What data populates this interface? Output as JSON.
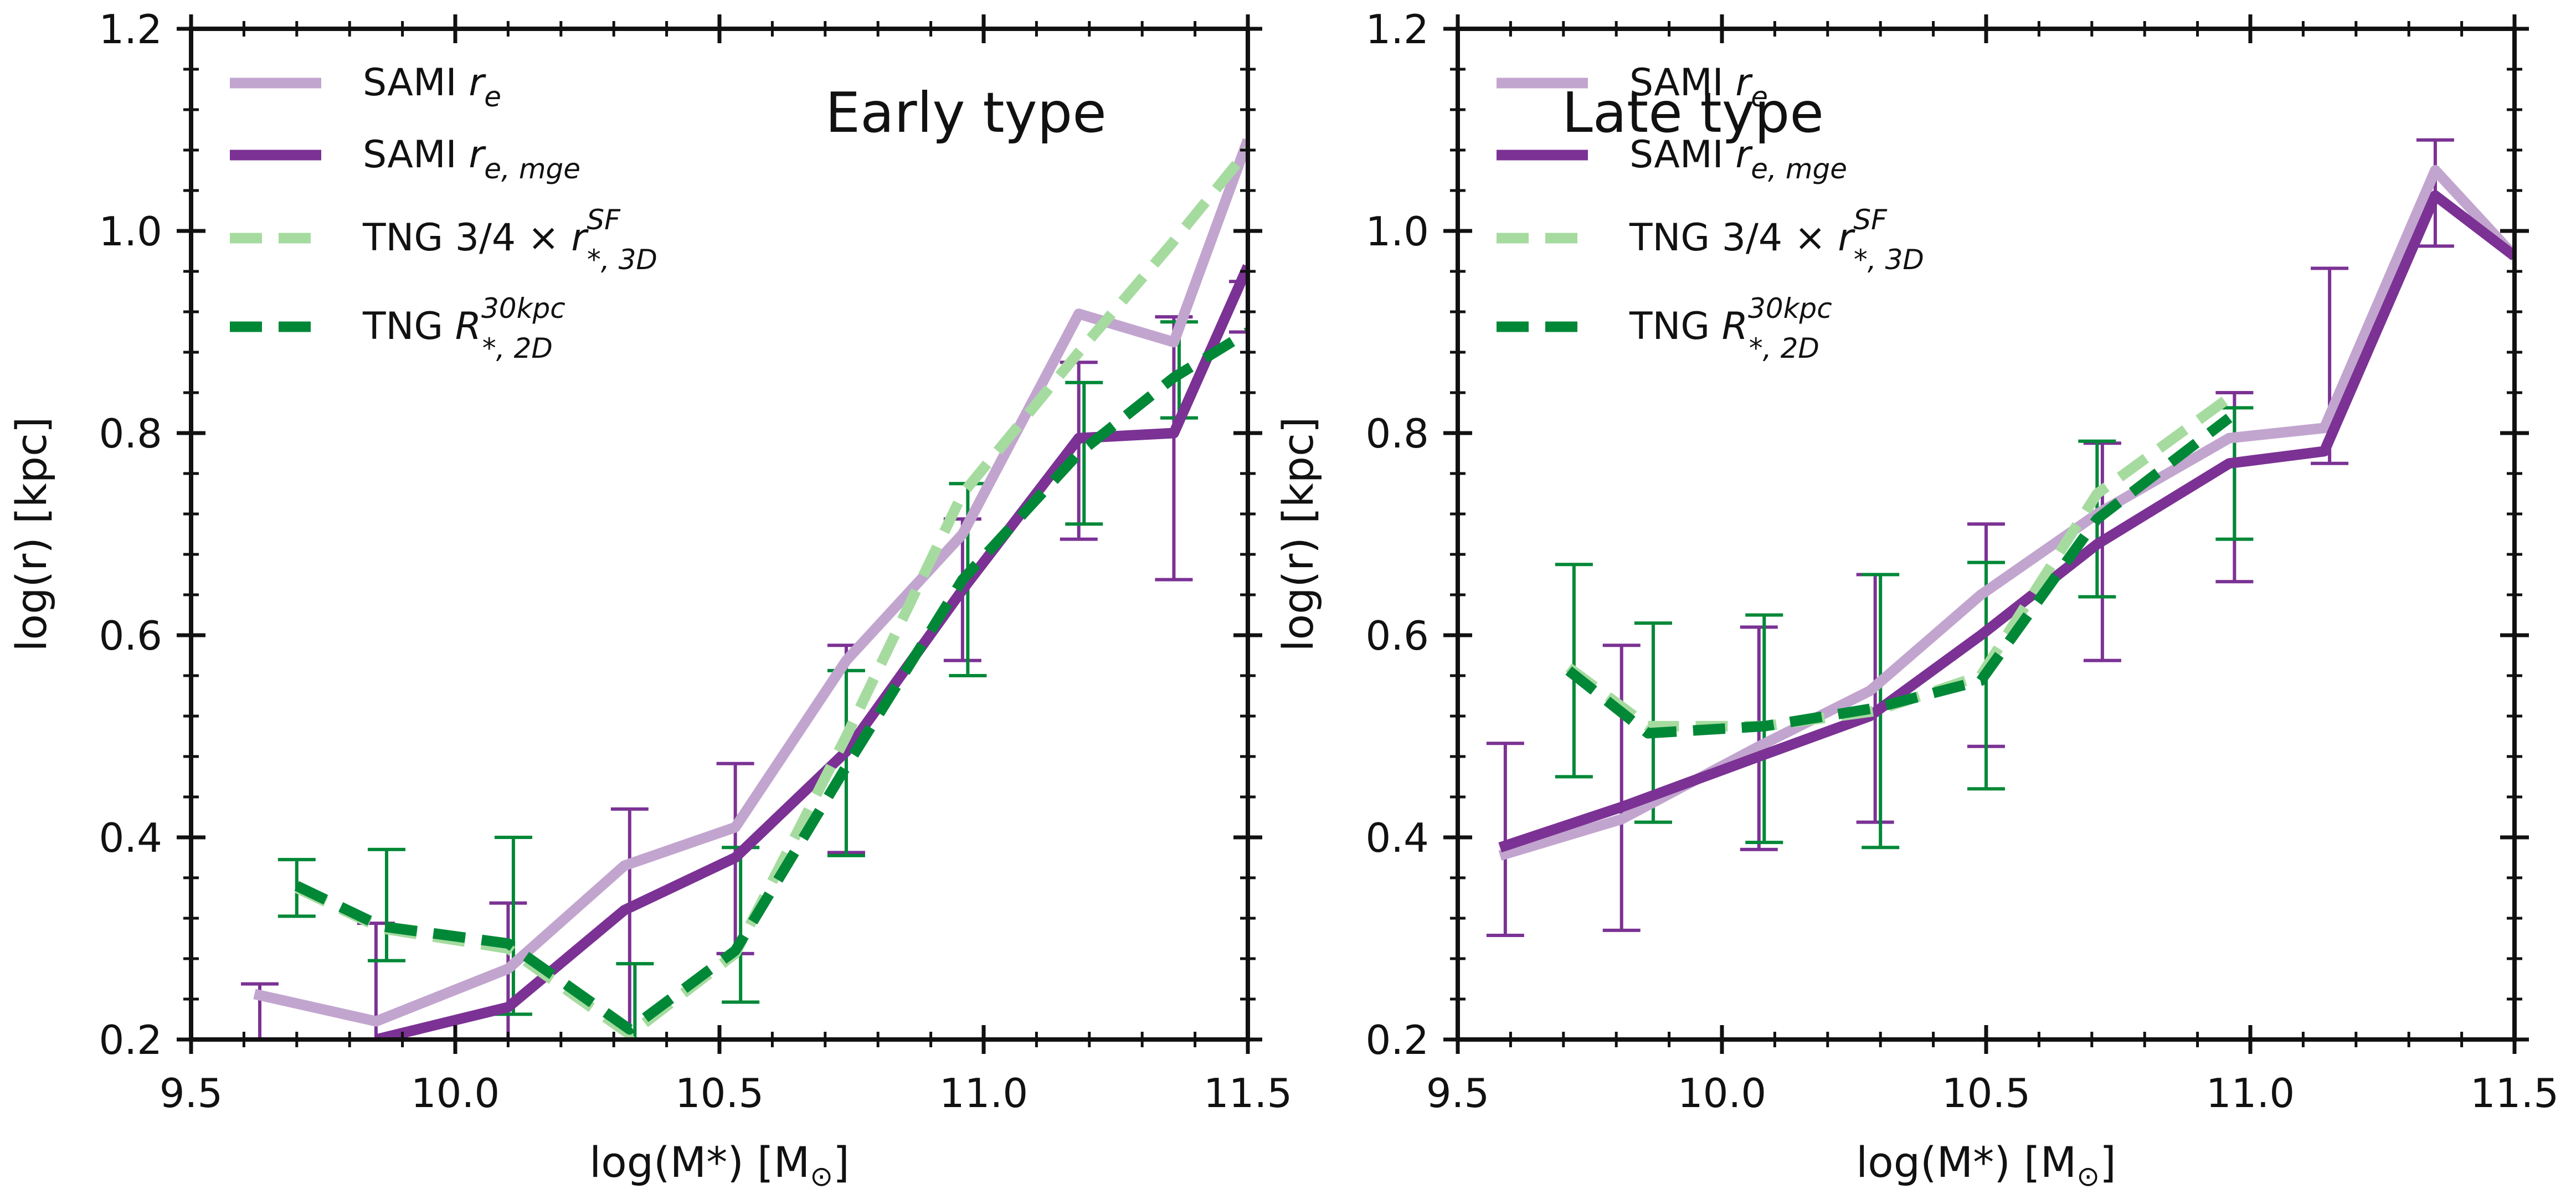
{
  "colors": {
    "sami_re": "#c2a5cf",
    "sami_re_mge": "#7b3294",
    "tng_sf": "#a6dba0",
    "tng_30kpc": "#008837"
  },
  "legend": [
    {
      "key": "sami_re",
      "text": "SAMI ",
      "math": "r",
      "sub": "e",
      "sup": "",
      "dashed": false
    },
    {
      "key": "sami_re_mge",
      "text": "SAMI ",
      "math": "r",
      "sub": "e, mge",
      "sup": "",
      "dashed": false
    },
    {
      "key": "tng_sf",
      "text": "TNG 3/4 × ",
      "math": "r",
      "sub": "*, 3D",
      "sup": "SF",
      "dashed": true
    },
    {
      "key": "tng_30kpc",
      "text": "TNG ",
      "math": "R",
      "sub": "*, 2D",
      "sup": "30kpc",
      "dashed": true
    }
  ],
  "chart_data": [
    {
      "type": "line",
      "title": "Early type",
      "xlabel": "log(M",
      "xlabel_math": "*",
      "xlabel_tail": ") [M",
      "xlabel_sub": "⊙",
      "xlabel_end": "]",
      "ylabel": "log(r) [kpc]",
      "xlim": [
        9.5,
        11.5
      ],
      "ylim": [
        0.2,
        1.2
      ],
      "xticks": [
        "9.5",
        "10.0",
        "10.5",
        "11.0",
        "11.5"
      ],
      "yticks": [
        "0.2",
        "0.4",
        "0.6",
        "0.8",
        "1.0",
        "1.2"
      ],
      "series": [
        {
          "key": "sami_re",
          "x": [
            9.62,
            9.85,
            10.1,
            10.32,
            10.53,
            10.74,
            10.96,
            11.18,
            11.36,
            11.5
          ],
          "y": [
            0.245,
            0.218,
            0.27,
            0.372,
            0.41,
            0.575,
            0.7,
            0.918,
            0.89,
            1.09
          ]
        },
        {
          "key": "sami_re_mge",
          "x": [
            9.85,
            10.1,
            10.32,
            10.53,
            10.74,
            10.96,
            11.18,
            11.36,
            11.5
          ],
          "y": [
            0.2,
            0.232,
            0.328,
            0.38,
            0.485,
            0.645,
            0.795,
            0.8,
            0.965
          ]
        },
        {
          "key": "tng_sf",
          "x": [
            9.7,
            9.86,
            10.1,
            10.33,
            10.53,
            10.74,
            10.96,
            11.18,
            11.36,
            11.5
          ],
          "y": [
            0.35,
            0.31,
            0.29,
            0.205,
            0.285,
            0.5,
            0.74,
            0.88,
            0.99,
            1.08
          ]
        },
        {
          "key": "tng_30kpc",
          "x": [
            9.7,
            9.86,
            10.1,
            10.33,
            10.53,
            10.74,
            10.96,
            11.18,
            11.36,
            11.5
          ],
          "y": [
            0.352,
            0.312,
            0.295,
            0.21,
            0.288,
            0.47,
            0.655,
            0.78,
            0.855,
            0.9
          ]
        }
      ],
      "errorbars": [
        {
          "key": "sami_re_mge",
          "x": [
            9.63,
            9.85,
            10.1,
            10.33,
            10.53,
            10.74,
            10.96,
            11.18,
            11.36,
            11.5
          ],
          "low": [
            0.2,
            0.2,
            0.2,
            0.2,
            0.285,
            0.385,
            0.575,
            0.695,
            0.655,
            0.9
          ],
          "high": [
            0.255,
            0.315,
            0.335,
            0.428,
            0.473,
            0.59,
            0.715,
            0.87,
            0.915,
            0.95
          ]
        },
        {
          "key": "tng_30kpc",
          "x": [
            9.7,
            9.87,
            10.11,
            10.34,
            10.54,
            10.74,
            10.97,
            11.19,
            11.37
          ],
          "low": [
            0.322,
            0.278,
            0.225,
            0.2,
            0.237,
            0.382,
            0.56,
            0.71,
            0.815
          ],
          "high": [
            0.378,
            0.388,
            0.4,
            0.275,
            0.39,
            0.565,
            0.75,
            0.85,
            0.91
          ]
        }
      ]
    },
    {
      "type": "line",
      "title": "Late type",
      "xlabel": "log(M",
      "xlabel_math": "*",
      "xlabel_tail": ") [M",
      "xlabel_sub": "⊙",
      "xlabel_end": "]",
      "ylabel": "log(r) [kpc]",
      "xlim": [
        9.5,
        11.5
      ],
      "ylim": [
        0.2,
        1.2
      ],
      "xticks": [
        "9.5",
        "10.0",
        "10.5",
        "11.0",
        "11.5"
      ],
      "yticks": [
        "0.2",
        "0.4",
        "0.6",
        "0.8",
        "1.0",
        "1.2"
      ],
      "series": [
        {
          "key": "sami_re",
          "x": [
            9.58,
            9.81,
            10.07,
            10.28,
            10.49,
            10.71,
            10.96,
            11.14,
            11.35,
            11.5
          ],
          "y": [
            0.382,
            0.418,
            0.49,
            0.545,
            0.64,
            0.72,
            0.795,
            0.805,
            1.06,
            0.975
          ]
        },
        {
          "key": "sami_re_mge",
          "x": [
            9.58,
            9.81,
            10.07,
            10.28,
            10.49,
            10.71,
            10.96,
            11.14,
            11.35,
            11.5
          ],
          "y": [
            0.39,
            0.43,
            0.48,
            0.52,
            0.6,
            0.69,
            0.77,
            0.782,
            1.035,
            0.975
          ]
        },
        {
          "key": "tng_sf",
          "x": [
            9.71,
            9.86,
            10.08,
            10.29,
            10.49,
            10.71,
            10.96
          ],
          "y": [
            0.568,
            0.51,
            0.51,
            0.525,
            0.56,
            0.74,
            0.835
          ]
        },
        {
          "key": "tng_30kpc",
          "x": [
            9.71,
            9.86,
            10.08,
            10.29,
            10.49,
            10.71,
            10.96
          ],
          "y": [
            0.565,
            0.503,
            0.51,
            0.528,
            0.555,
            0.715,
            0.815
          ]
        }
      ],
      "errorbars": [
        {
          "key": "sami_re_mge",
          "x": [
            9.59,
            9.81,
            10.07,
            10.29,
            10.5,
            10.72,
            10.97,
            11.15,
            11.35
          ],
          "low": [
            0.303,
            0.308,
            0.388,
            0.415,
            0.49,
            0.575,
            0.653,
            0.77,
            0.985
          ],
          "high": [
            0.493,
            0.59,
            0.608,
            0.66,
            0.71,
            0.79,
            0.84,
            0.963,
            1.09
          ]
        },
        {
          "key": "tng_30kpc",
          "x": [
            9.72,
            9.87,
            10.08,
            10.3,
            10.5,
            10.71,
            10.97
          ],
          "low": [
            0.46,
            0.415,
            0.395,
            0.39,
            0.448,
            0.638,
            0.695
          ],
          "high": [
            0.67,
            0.612,
            0.62,
            0.66,
            0.672,
            0.792,
            0.825
          ]
        }
      ]
    }
  ]
}
